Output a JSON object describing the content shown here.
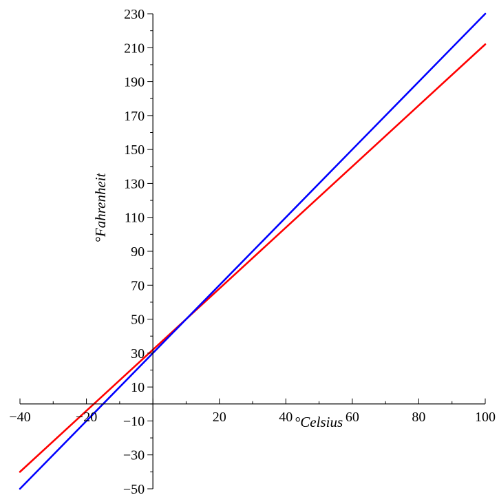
{
  "chart_data": {
    "type": "line",
    "xlabel": "°Celsius",
    "ylabel": "°Fahrenheit",
    "xlim": [
      -40,
      100
    ],
    "ylim": [
      -50,
      230
    ],
    "grid": false,
    "x_ticks": [
      "-40",
      "-20",
      "20",
      "40",
      "60",
      "80",
      "100"
    ],
    "y_ticks": [
      "-50",
      "-30",
      "-10",
      "10",
      "30",
      "50",
      "70",
      "90",
      "110",
      "130",
      "150",
      "170",
      "190",
      "210",
      "230"
    ],
    "series": [
      {
        "color": "#ff0000",
        "x": [
          -40,
          100
        ],
        "y": [
          -40,
          212
        ]
      },
      {
        "color": "#0000ff",
        "x": [
          -40,
          100
        ],
        "y": [
          -50,
          230
        ]
      }
    ]
  }
}
